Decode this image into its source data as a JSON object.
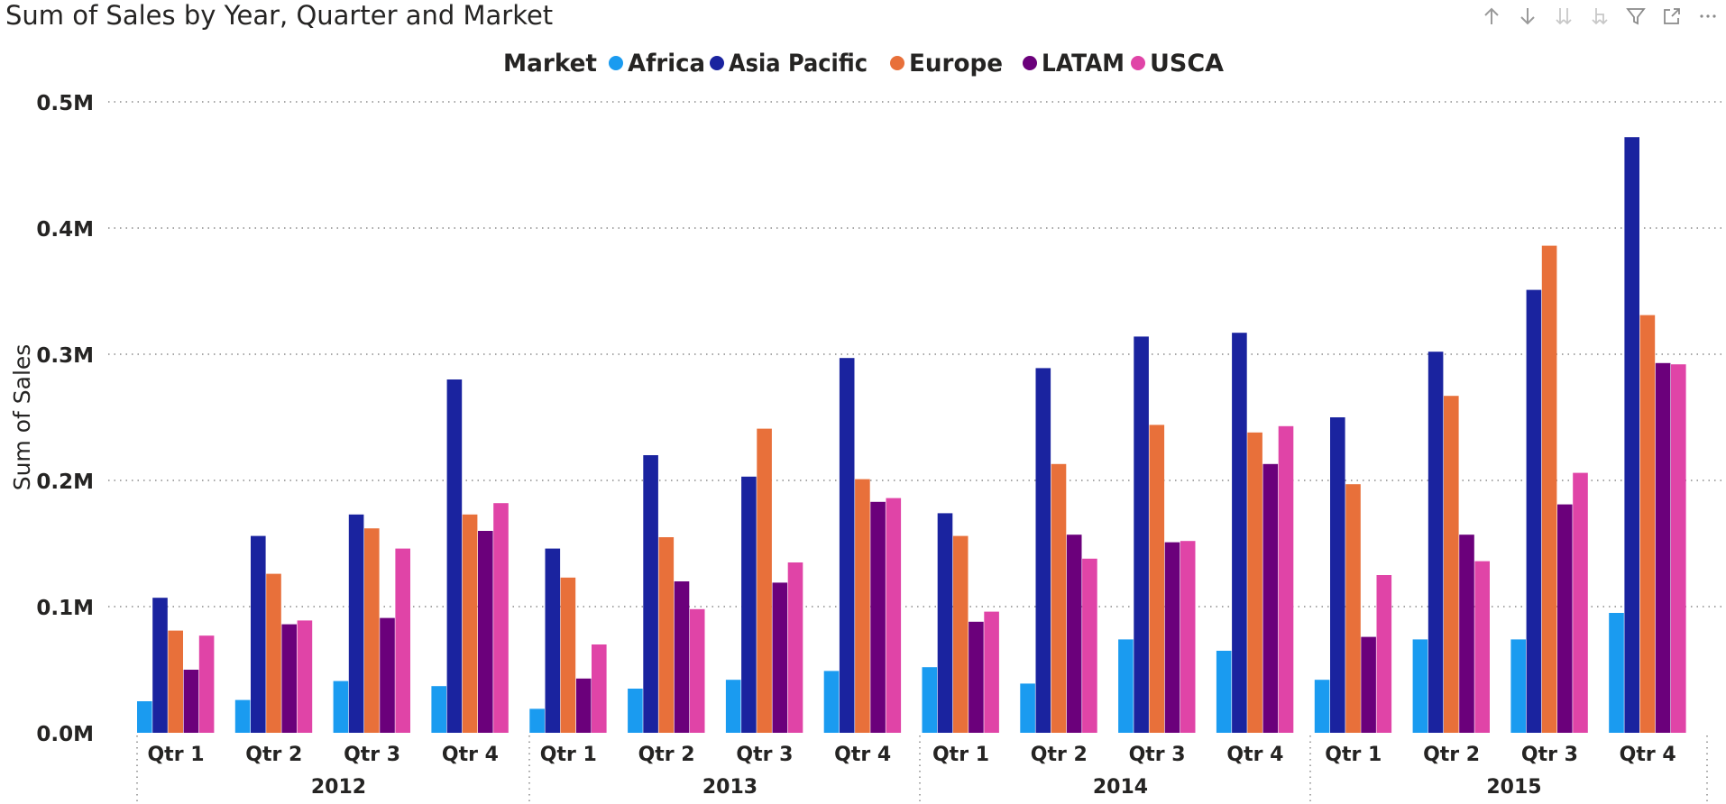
{
  "title": "Sum of Sales by Year, Quarter and Market",
  "legend": {
    "title": "Market",
    "items": [
      {
        "name": "Africa",
        "color": "#1A9BF0"
      },
      {
        "name": "Asia Pacific",
        "color": "#1A239F"
      },
      {
        "name": "Europe",
        "color": "#E8703A"
      },
      {
        "name": "LATAM",
        "color": "#6B007B"
      },
      {
        "name": "USCA",
        "color": "#E044A7"
      }
    ]
  },
  "toolbar": {
    "icons": [
      "sort-ascending-icon",
      "sort-descending-icon",
      "drill-down-all-icon",
      "expand-hierarchy-icon",
      "filter-icon",
      "focus-mode-icon",
      "more-options-icon"
    ]
  },
  "chart_data": {
    "type": "bar",
    "ylabel": "Sum of Sales",
    "ylim": [
      0,
      500000
    ],
    "yticks": [
      0,
      100000,
      200000,
      300000,
      400000,
      500000
    ],
    "ytick_labels": [
      "0.0M",
      "0.1M",
      "0.2M",
      "0.3M",
      "0.4M",
      "0.5M"
    ],
    "grid": true,
    "legend_position": "top-center",
    "years": [
      "2012",
      "2013",
      "2014",
      "2015"
    ],
    "quarters": [
      "Qtr 1",
      "Qtr 2",
      "Qtr 3",
      "Qtr 4"
    ],
    "categories": [
      "2012 Qtr 1",
      "2012 Qtr 2",
      "2012 Qtr 3",
      "2012 Qtr 4",
      "2013 Qtr 1",
      "2013 Qtr 2",
      "2013 Qtr 3",
      "2013 Qtr 4",
      "2014 Qtr 1",
      "2014 Qtr 2",
      "2014 Qtr 3",
      "2014 Qtr 4",
      "2015 Qtr 1",
      "2015 Qtr 2",
      "2015 Qtr 3",
      "2015 Qtr 4"
    ],
    "series": [
      {
        "name": "Africa",
        "values": [
          25000,
          26000,
          41000,
          37000,
          19000,
          35000,
          42000,
          49000,
          52000,
          39000,
          74000,
          65000,
          42000,
          74000,
          74000,
          95000
        ]
      },
      {
        "name": "Asia Pacific",
        "values": [
          107000,
          156000,
          173000,
          280000,
          146000,
          220000,
          203000,
          297000,
          174000,
          289000,
          314000,
          317000,
          250000,
          302000,
          351000,
          472000
        ]
      },
      {
        "name": "Europe",
        "values": [
          81000,
          126000,
          162000,
          173000,
          123000,
          155000,
          241000,
          201000,
          156000,
          213000,
          244000,
          238000,
          197000,
          267000,
          386000,
          331000
        ]
      },
      {
        "name": "LATAM",
        "values": [
          50000,
          86000,
          91000,
          160000,
          43000,
          120000,
          119000,
          183000,
          88000,
          157000,
          151000,
          213000,
          76000,
          157000,
          181000,
          293000
        ]
      },
      {
        "name": "USCA",
        "values": [
          77000,
          89000,
          146000,
          182000,
          70000,
          98000,
          135000,
          186000,
          96000,
          138000,
          152000,
          243000,
          125000,
          136000,
          206000,
          292000
        ]
      }
    ]
  }
}
